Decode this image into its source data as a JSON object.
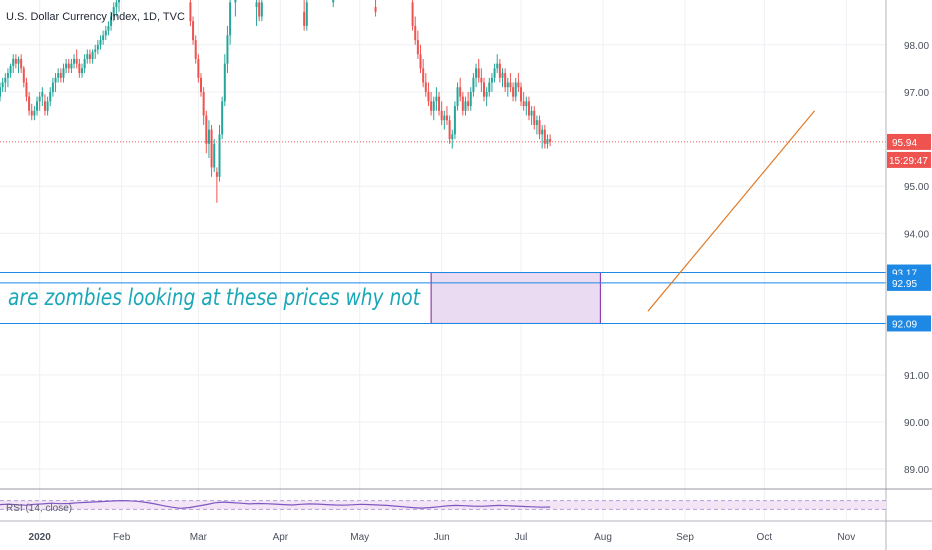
{
  "chart_data": {
    "type": "candlestick",
    "title": "U.S. Dollar Currency Index, 1D, TVC",
    "y_ticks": [
      98.0,
      97.0,
      95.0,
      94.0,
      91.0,
      90.0,
      89.0
    ],
    "y_tick_labels": [
      "98.00",
      "97.00",
      "95.00",
      "94.00",
      "91.00",
      "90.00",
      "89.00"
    ],
    "ylim": [
      88.6,
      98.95
    ],
    "x_tick_labels": [
      "2020",
      "Feb",
      "Mar",
      "Apr",
      "May",
      "Jun",
      "Jul",
      "Aug",
      "Sep",
      "Oct",
      "Nov"
    ],
    "x_tick_days": [
      0,
      31,
      60,
      91,
      121,
      152,
      182,
      213,
      244,
      274,
      305
    ],
    "x_domain_days": [
      -15,
      320
    ],
    "candles": [
      [
        -15,
        96.9,
        97.2,
        96.8,
        97.1
      ],
      [
        -14,
        97.1,
        97.3,
        97.0,
        97.2
      ],
      [
        -13,
        97.2,
        97.4,
        97.0,
        97.3
      ],
      [
        -12,
        97.3,
        97.5,
        97.1,
        97.4
      ],
      [
        -11,
        97.4,
        97.6,
        97.3,
        97.55
      ],
      [
        -10,
        97.55,
        97.8,
        97.4,
        97.7
      ],
      [
        -9,
        97.7,
        97.8,
        97.5,
        97.6
      ],
      [
        -8,
        97.6,
        97.75,
        97.4,
        97.7
      ],
      [
        -7,
        97.7,
        97.8,
        97.4,
        97.5
      ],
      [
        -6,
        97.5,
        97.55,
        97.1,
        97.2
      ],
      [
        -5,
        97.2,
        97.3,
        96.8,
        96.9
      ],
      [
        -4,
        96.9,
        97.0,
        96.5,
        96.6
      ],
      [
        -3,
        96.6,
        96.75,
        96.4,
        96.5
      ],
      [
        -2,
        96.5,
        96.7,
        96.4,
        96.6
      ],
      [
        -1,
        96.6,
        96.9,
        96.5,
        96.8
      ],
      [
        0,
        96.8,
        97.0,
        96.6,
        96.9
      ],
      [
        1,
        96.9,
        97.1,
        96.7,
        97.0
      ],
      [
        2,
        96.8,
        96.95,
        96.5,
        96.6
      ],
      [
        3,
        96.6,
        96.9,
        96.5,
        96.8
      ],
      [
        4,
        96.8,
        97.1,
        96.7,
        97.0
      ],
      [
        5,
        97.0,
        97.3,
        96.9,
        97.2
      ],
      [
        6,
        97.2,
        97.4,
        97.0,
        97.3
      ],
      [
        7,
        97.3,
        97.5,
        97.2,
        97.4
      ],
      [
        8,
        97.4,
        97.5,
        97.2,
        97.3
      ],
      [
        9,
        97.3,
        97.6,
        97.2,
        97.5
      ],
      [
        10,
        97.5,
        97.7,
        97.4,
        97.6
      ],
      [
        11,
        97.6,
        97.7,
        97.4,
        97.5
      ],
      [
        12,
        97.5,
        97.7,
        97.4,
        97.6
      ],
      [
        13,
        97.6,
        97.8,
        97.5,
        97.7
      ],
      [
        14,
        97.7,
        97.9,
        97.5,
        97.6
      ],
      [
        15,
        97.6,
        97.7,
        97.3,
        97.4
      ],
      [
        16,
        97.4,
        97.6,
        97.3,
        97.5
      ],
      [
        17,
        97.5,
        97.8,
        97.4,
        97.7
      ],
      [
        18,
        97.7,
        97.9,
        97.6,
        97.8
      ],
      [
        19,
        97.8,
        97.9,
        97.6,
        97.7
      ],
      [
        20,
        97.7,
        97.9,
        97.6,
        97.85
      ],
      [
        21,
        97.85,
        98.0,
        97.7,
        97.9
      ],
      [
        22,
        97.9,
        98.1,
        97.8,
        98.0
      ],
      [
        23,
        98.0,
        98.2,
        97.9,
        98.1
      ],
      [
        24,
        98.1,
        98.3,
        98.0,
        98.2
      ],
      [
        25,
        98.2,
        98.4,
        98.1,
        98.3
      ],
      [
        26,
        98.3,
        98.5,
        98.2,
        98.4
      ],
      [
        27,
        98.4,
        98.7,
        98.3,
        98.6
      ],
      [
        28,
        98.6,
        98.9,
        98.5,
        98.8
      ],
      [
        29,
        98.8,
        99.0,
        98.6,
        98.9
      ],
      [
        30,
        98.9,
        99.1,
        98.7,
        98.95
      ],
      [
        57,
        98.9,
        99.0,
        98.4,
        98.5
      ],
      [
        58,
        98.5,
        98.6,
        98.0,
        98.1
      ],
      [
        59,
        98.1,
        98.2,
        97.6,
        97.7
      ],
      [
        60,
        97.7,
        97.8,
        97.2,
        97.3
      ],
      [
        61,
        97.3,
        97.4,
        96.9,
        97.0
      ],
      [
        62,
        97.0,
        97.1,
        96.3,
        96.5
      ],
      [
        63,
        96.5,
        96.6,
        95.7,
        95.9
      ],
      [
        64,
        95.9,
        96.4,
        95.6,
        96.2
      ],
      [
        65,
        96.2,
        96.3,
        95.2,
        95.4
      ],
      [
        66,
        95.4,
        96.0,
        95.3,
        95.9
      ],
      [
        67,
        95.3,
        95.4,
        94.65,
        95.2
      ],
      [
        68,
        95.2,
        96.3,
        95.1,
        96.1
      ],
      [
        69,
        96.1,
        96.9,
        96.0,
        96.8
      ],
      [
        70,
        96.8,
        97.8,
        96.7,
        97.6
      ],
      [
        71,
        97.6,
        98.4,
        97.4,
        98.2
      ],
      [
        72,
        98.2,
        99.1,
        98.0,
        98.9
      ],
      [
        74,
        98.9,
        99.2,
        98.6,
        99.0
      ],
      [
        82,
        98.8,
        99.2,
        98.4,
        98.9
      ],
      [
        83,
        98.9,
        99.1,
        98.5,
        98.6
      ],
      [
        84,
        98.6,
        99.0,
        98.5,
        98.9
      ],
      [
        100,
        98.7,
        99.1,
        98.3,
        98.4
      ],
      [
        101,
        98.4,
        99.0,
        98.3,
        98.9
      ],
      [
        111,
        98.9,
        99.1,
        98.8,
        99.0
      ],
      [
        127,
        98.8,
        99.0,
        98.6,
        98.7
      ],
      [
        141,
        98.9,
        99.0,
        98.3,
        98.4
      ],
      [
        142,
        98.4,
        98.6,
        98.0,
        98.1
      ],
      [
        143,
        98.1,
        98.3,
        97.7,
        97.8
      ],
      [
        144,
        97.8,
        98.0,
        97.4,
        97.5
      ],
      [
        145,
        97.5,
        97.7,
        97.1,
        97.2
      ],
      [
        146,
        97.2,
        97.4,
        96.9,
        97.0
      ],
      [
        147,
        97.0,
        97.2,
        96.7,
        96.8
      ],
      [
        148,
        96.8,
        97.0,
        96.5,
        96.6
      ],
      [
        149,
        96.6,
        96.9,
        96.4,
        96.8
      ],
      [
        150,
        96.8,
        97.1,
        96.6,
        96.9
      ],
      [
        151,
        96.9,
        97.0,
        96.5,
        96.6
      ],
      [
        152,
        96.6,
        96.8,
        96.3,
        96.4
      ],
      [
        153,
        96.4,
        96.6,
        96.2,
        96.5
      ],
      [
        154,
        96.5,
        96.7,
        96.3,
        96.4
      ],
      [
        155,
        96.4,
        96.5,
        95.9,
        96.0
      ],
      [
        156,
        96.0,
        96.2,
        95.8,
        96.1
      ],
      [
        157,
        96.1,
        96.8,
        96.0,
        96.7
      ],
      [
        158,
        96.7,
        97.2,
        96.6,
        97.1
      ],
      [
        159,
        97.1,
        97.3,
        96.8,
        96.9
      ],
      [
        160,
        96.9,
        97.0,
        96.5,
        96.6
      ],
      [
        161,
        96.6,
        96.9,
        96.5,
        96.8
      ],
      [
        162,
        96.8,
        97.0,
        96.6,
        96.7
      ],
      [
        163,
        96.7,
        97.1,
        96.6,
        97.0
      ],
      [
        164,
        97.0,
        97.4,
        96.9,
        97.3
      ],
      [
        165,
        97.3,
        97.6,
        97.1,
        97.5
      ],
      [
        166,
        97.5,
        97.7,
        97.2,
        97.3
      ],
      [
        167,
        97.3,
        97.5,
        97.0,
        97.2
      ],
      [
        168,
        97.2,
        97.3,
        96.8,
        96.9
      ],
      [
        169,
        96.9,
        97.1,
        96.7,
        97.0
      ],
      [
        170,
        97.0,
        97.3,
        96.9,
        97.2
      ],
      [
        171,
        97.2,
        97.4,
        97.0,
        97.3
      ],
      [
        172,
        97.3,
        97.6,
        97.2,
        97.5
      ],
      [
        173,
        97.5,
        97.8,
        97.4,
        97.6
      ],
      [
        174,
        97.6,
        97.7,
        97.2,
        97.3
      ],
      [
        175,
        97.3,
        97.5,
        97.1,
        97.4
      ],
      [
        176,
        97.4,
        97.5,
        97.0,
        97.1
      ],
      [
        177,
        97.1,
        97.3,
        96.9,
        97.2
      ],
      [
        178,
        97.2,
        97.4,
        97.0,
        97.1
      ],
      [
        179,
        97.1,
        97.2,
        96.8,
        96.9
      ],
      [
        180,
        96.9,
        97.3,
        96.8,
        97.2
      ],
      [
        181,
        97.2,
        97.4,
        97.0,
        97.1
      ],
      [
        182,
        97.1,
        97.2,
        96.7,
        96.8
      ],
      [
        183,
        96.8,
        97.0,
        96.6,
        96.7
      ],
      [
        184,
        96.7,
        96.9,
        96.5,
        96.8
      ],
      [
        185,
        96.8,
        96.9,
        96.4,
        96.5
      ],
      [
        186,
        96.5,
        96.7,
        96.3,
        96.6
      ],
      [
        187,
        96.6,
        96.7,
        96.2,
        96.3
      ],
      [
        188,
        96.3,
        96.5,
        96.1,
        96.4
      ],
      [
        189,
        96.4,
        96.5,
        96.0,
        96.1
      ],
      [
        190,
        96.1,
        96.3,
        95.8,
        96.2
      ],
      [
        191,
        96.2,
        96.3,
        95.8,
        95.9
      ],
      [
        192,
        95.9,
        96.1,
        95.8,
        96.0
      ],
      [
        193,
        96.0,
        96.1,
        95.85,
        95.94
      ]
    ],
    "current_price": {
      "value": 95.94,
      "label": "95.94",
      "countdown": "15:29:47"
    },
    "horizontal_lines": [
      {
        "value": 93.17,
        "label": "93.17"
      },
      {
        "value": 92.95,
        "label": "92.95"
      },
      {
        "value": 92.09,
        "label": "92.09"
      }
    ],
    "rectangle": {
      "x0_day": 148,
      "x1_day": 212,
      "y_top": 93.17,
      "y_bottom": 92.09
    },
    "trend_line": {
      "x0_day": 230,
      "y0": 92.35,
      "x1_day": 293,
      "y1": 96.6
    },
    "annotation": "are zombies looking at these prices why not",
    "rsi": {
      "label": "RSI (14, close)",
      "series": [
        52,
        54,
        51,
        49,
        53,
        55,
        58,
        56,
        57,
        60,
        62,
        64,
        66,
        68,
        70,
        69,
        67,
        62,
        55,
        47,
        40,
        35,
        38,
        45,
        52,
        60,
        63,
        61,
        58,
        55,
        57,
        56,
        54,
        52,
        50,
        53,
        55,
        54,
        52,
        50,
        49,
        51,
        53,
        52,
        50,
        48,
        45,
        42,
        38,
        36,
        38,
        42,
        46,
        48,
        47,
        45,
        44,
        46,
        48,
        47,
        45,
        43,
        42,
        40,
        41
      ],
      "start_day": -15,
      "end_day": 193,
      "band": [
        30,
        70
      ]
    },
    "colors": {
      "up": "#26a69a",
      "down": "#ef5350",
      "hline": "#1e88e5",
      "rect_fill": "#e8d5f0",
      "rect_stroke": "#7b1fa2",
      "trend": "#e07b28",
      "rsi_line": "#7e57c2",
      "annotation": "#1aa7b8"
    }
  }
}
